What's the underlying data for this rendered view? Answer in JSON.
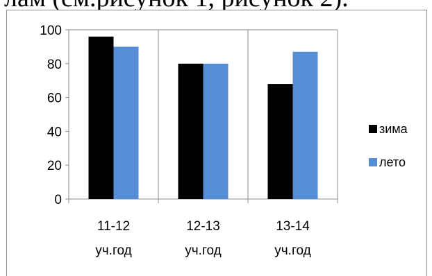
{
  "header_text": "лам (см.рисунок 1, рисунок 2).",
  "chart_data": {
    "type": "bar",
    "title": "",
    "xlabel": "",
    "ylabel": "",
    "categories": [
      [
        "11-12",
        "уч.год"
      ],
      [
        "12-13",
        "уч.год"
      ],
      [
        "13-14",
        "уч.год"
      ]
    ],
    "series": [
      {
        "name": "зима",
        "values": [
          96,
          80,
          68
        ],
        "color": "#000000"
      },
      {
        "name": "лето",
        "values": [
          90,
          80,
          87
        ],
        "color": "#558ed5"
      }
    ],
    "ylim": [
      0,
      100
    ],
    "yticks": [
      "0",
      "20",
      "40",
      "60",
      "80",
      "100"
    ],
    "grid": "vertical category dividers",
    "legend": "right"
  }
}
